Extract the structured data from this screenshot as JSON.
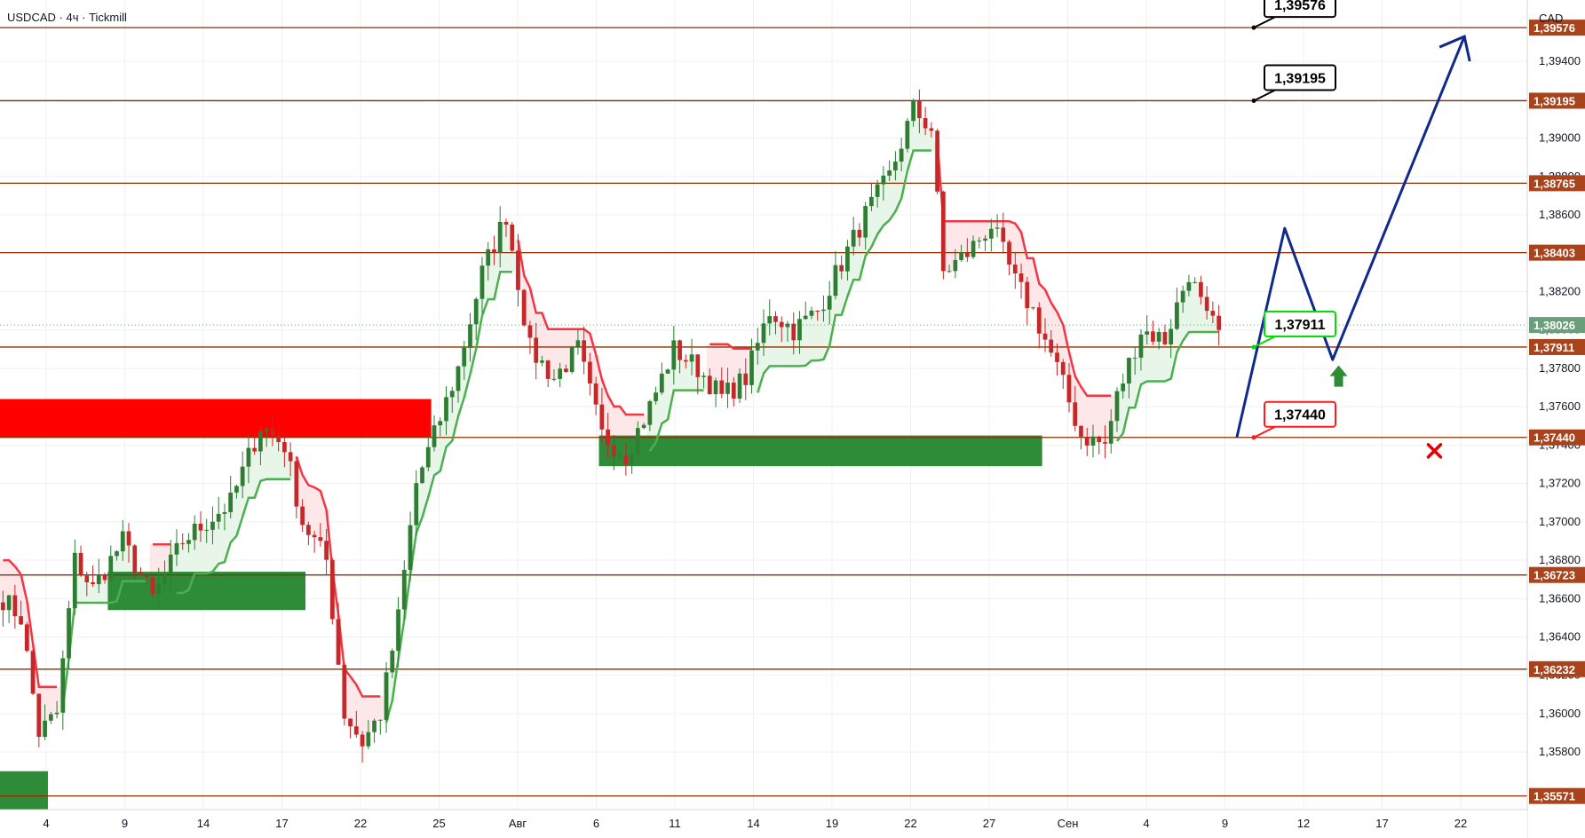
{
  "header": {
    "symbol": "USDCAD",
    "interval": "4ч",
    "broker": "Tickmill",
    "currency": "CAD"
  },
  "colors": {
    "level_line": "#8b2e00",
    "level_label_bg": "#a8431b",
    "supertrend_up": "#4caf50",
    "supertrend_down": "#f23645",
    "fill_up": "#e8f5e9",
    "fill_down": "#fde7e9",
    "candle_up": "#2e7d32",
    "candle_down": "#c62828",
    "zone_green": "#2e8b38",
    "zone_red": "#ff0000",
    "projection": "#102a8c",
    "current_price_bg": "#6b9e7a",
    "callout_green": "#00e000",
    "callout_red": "#ff1a1a",
    "grid": "#eef0f3"
  },
  "chart_data": {
    "type": "candlestick",
    "ylim": [
      1.355,
      1.3972
    ],
    "y_ticks": [
      1.358,
      1.36,
      1.362,
      1.364,
      1.366,
      1.368,
      1.37,
      1.372,
      1.374,
      1.376,
      1.378,
      1.38,
      1.382,
      1.384,
      1.386,
      1.388,
      1.39,
      1.392,
      1.394
    ],
    "y_tick_labels": [
      "1,35800",
      "1,36000",
      "1,36200",
      "1,36400",
      "1,36600",
      "1,36800",
      "1,37000",
      "1,37200",
      "1,37400",
      "1,37600",
      "1,37800",
      "1,38000",
      "1,38200",
      "1,38400",
      "1,38600",
      "1,38800",
      "1,39000",
      "1,39200",
      "1,39400"
    ],
    "x_ticks": [
      "4",
      "9",
      "14",
      "17",
      "22",
      "25",
      "Авг",
      "6",
      "11",
      "14",
      "19",
      "22",
      "27",
      "Сен",
      "4",
      "9",
      "12",
      "17",
      "22"
    ],
    "levels": [
      {
        "value": 1.39576,
        "label": "1,39576"
      },
      {
        "value": 1.39195,
        "label": "1,39195"
      },
      {
        "value": 1.38765,
        "label": "1,38765"
      },
      {
        "value": 1.38403,
        "label": "1,38403"
      },
      {
        "value": 1.37911,
        "label": "1,37911"
      },
      {
        "value": 1.3744,
        "label": "1,37440"
      },
      {
        "value": 1.36723,
        "label": "1,36723"
      },
      {
        "value": 1.36232,
        "label": "1,36232"
      },
      {
        "value": 1.35571,
        "label": "1,35571"
      }
    ],
    "current_price": {
      "value": 1.38026,
      "label": "1,38026"
    },
    "callouts": [
      {
        "value": 1.39576,
        "label": "1,39576",
        "style": "black"
      },
      {
        "value": 1.39195,
        "label": "1,39195",
        "style": "black"
      },
      {
        "value": 1.37911,
        "label": "1,37911",
        "style": "green"
      },
      {
        "value": 1.3744,
        "label": "1,37440",
        "style": "red"
      }
    ],
    "projection": {
      "points": [
        {
          "bar": 206,
          "price": 1.3744
        },
        {
          "bar": 214,
          "price": 1.3853
        },
        {
          "bar": 222,
          "price": 1.37845
        },
        {
          "bar": 244,
          "price": 1.3953
        }
      ]
    },
    "zones": [
      {
        "type": "resistance",
        "x_start": 0,
        "x_end": 71,
        "low": 1.3744,
        "high": 1.3764
      },
      {
        "type": "support",
        "x_start": 18,
        "x_end": 50,
        "low": 1.3654,
        "high": 1.3674
      },
      {
        "type": "support",
        "x_start": 100,
        "x_end": 173,
        "low": 1.3729,
        "high": 1.3745
      },
      {
        "type": "support",
        "x_start": 0,
        "x_end": 7,
        "low": 1.355,
        "high": 1.357
      }
    ],
    "signals": [
      {
        "type": "buy-arrow",
        "bar": 223,
        "price": 1.3776
      },
      {
        "type": "stop-cross",
        "bar": 239,
        "price": 1.3737
      }
    ],
    "bars_visible": 255,
    "anchors": [
      {
        "bar": 0,
        "price": 1.366
      },
      {
        "bar": 3,
        "price": 1.365
      },
      {
        "bar": 6,
        "price": 1.359
      },
      {
        "bar": 9,
        "price": 1.36
      },
      {
        "bar": 12,
        "price": 1.368
      },
      {
        "bar": 15,
        "price": 1.3665
      },
      {
        "bar": 20,
        "price": 1.369
      },
      {
        "bar": 25,
        "price": 1.366
      },
      {
        "bar": 30,
        "price": 1.369
      },
      {
        "bar": 38,
        "price": 1.371
      },
      {
        "bar": 43,
        "price": 1.375
      },
      {
        "bar": 47,
        "price": 1.374
      },
      {
        "bar": 50,
        "price": 1.37
      },
      {
        "bar": 54,
        "price": 1.368
      },
      {
        "bar": 57,
        "price": 1.36
      },
      {
        "bar": 60,
        "price": 1.3585
      },
      {
        "bar": 63,
        "price": 1.36
      },
      {
        "bar": 66,
        "price": 1.365
      },
      {
        "bar": 69,
        "price": 1.372
      },
      {
        "bar": 72,
        "price": 1.3745
      },
      {
        "bar": 76,
        "price": 1.378
      },
      {
        "bar": 80,
        "price": 1.383
      },
      {
        "bar": 84,
        "price": 1.386
      },
      {
        "bar": 88,
        "price": 1.379
      },
      {
        "bar": 92,
        "price": 1.3775
      },
      {
        "bar": 96,
        "price": 1.379
      },
      {
        "bar": 100,
        "price": 1.3745
      },
      {
        "bar": 104,
        "price": 1.3735
      },
      {
        "bar": 108,
        "price": 1.376
      },
      {
        "bar": 112,
        "price": 1.379
      },
      {
        "bar": 116,
        "price": 1.378
      },
      {
        "bar": 120,
        "price": 1.3765
      },
      {
        "bar": 124,
        "price": 1.3775
      },
      {
        "bar": 128,
        "price": 1.381
      },
      {
        "bar": 132,
        "price": 1.38
      },
      {
        "bar": 136,
        "price": 1.381
      },
      {
        "bar": 140,
        "price": 1.3835
      },
      {
        "bar": 144,
        "price": 1.386
      },
      {
        "bar": 148,
        "price": 1.388
      },
      {
        "bar": 152,
        "price": 1.3915
      },
      {
        "bar": 155,
        "price": 1.3905
      },
      {
        "bar": 157,
        "price": 1.383
      },
      {
        "bar": 161,
        "price": 1.384
      },
      {
        "bar": 165,
        "price": 1.3855
      },
      {
        "bar": 169,
        "price": 1.3825
      },
      {
        "bar": 172,
        "price": 1.381
      },
      {
        "bar": 176,
        "price": 1.378
      },
      {
        "bar": 180,
        "price": 1.3745
      },
      {
        "bar": 184,
        "price": 1.374
      },
      {
        "bar": 186,
        "price": 1.3765
      },
      {
        "bar": 190,
        "price": 1.38
      },
      {
        "bar": 194,
        "price": 1.3795
      },
      {
        "bar": 198,
        "price": 1.383
      },
      {
        "bar": 201,
        "price": 1.3805
      },
      {
        "bar": 203,
        "price": 1.38
      }
    ]
  }
}
